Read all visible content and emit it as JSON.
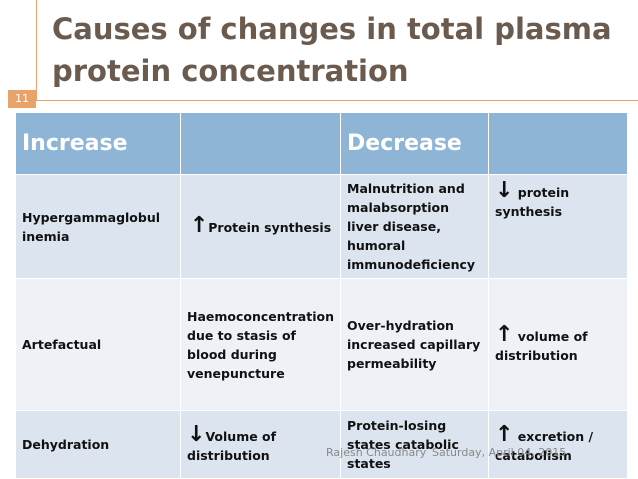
{
  "slide": {
    "title_line1": "Causes of changes in total plasma",
    "title_line2": "protein concentration",
    "slide_number": "11",
    "footer_author": "Rajesh Chaudhary",
    "footer_date": "Saturday, April 04, 2015"
  },
  "table": {
    "headers": [
      "Increase",
      "",
      "Decrease",
      ""
    ],
    "rows": [
      {
        "c1": "Hypergammaglobul inemia",
        "c2_arrow": "↑",
        "c2": "Protein synthesis",
        "c3": "Malnutrition and malabsorption liver disease, humoral immunodeficiency",
        "c4_arrow": "↓",
        "c4": "protein synthesis"
      },
      {
        "c1": "Artefactual",
        "c2_arrow": "",
        "c2": "Haemoconcentration due to stasis of blood during venepuncture",
        "c3": "Over-hydration increased capillary permeability",
        "c4_arrow": "↑",
        "c4": "volume of distribution"
      },
      {
        "c1": "Dehydration",
        "c2_arrow": "↓",
        "c2": "Volume of distribution",
        "c3": "Protein-losing states catabolic states",
        "c4_arrow": "↑",
        "c4": "excretion / catabolism"
      }
    ]
  }
}
